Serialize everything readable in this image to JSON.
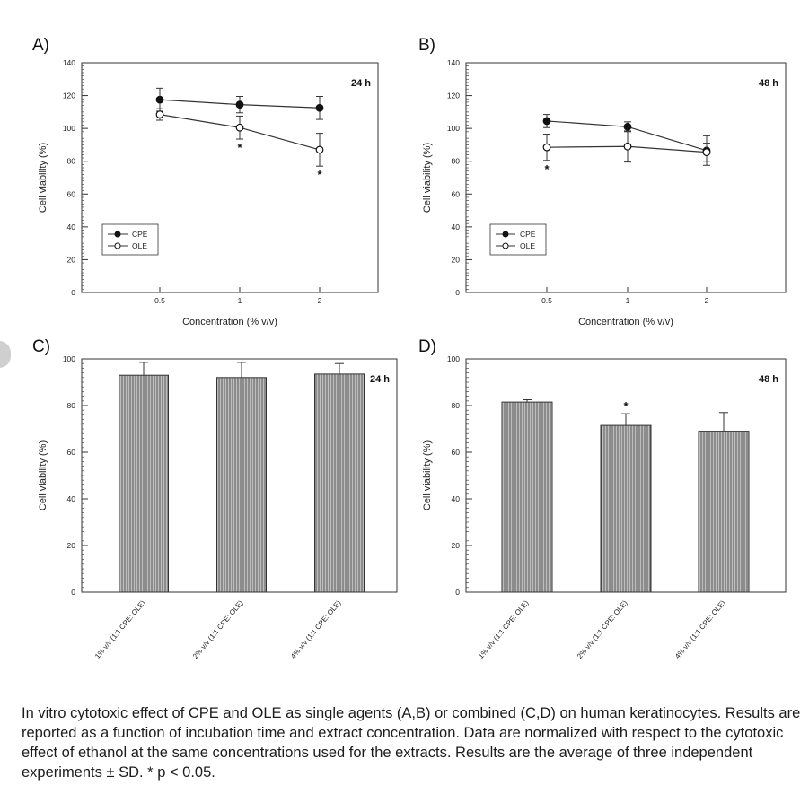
{
  "chart_data": [
    {
      "panel_label": "A)",
      "type": "line",
      "title": "24 h",
      "xlabel": "Concentration (% v/v)",
      "ylabel": "Cell viability (%)",
      "categories": [
        "0.5",
        "1",
        "2"
      ],
      "yticks": [
        "0",
        "20",
        "40",
        "60",
        "80",
        "100",
        "120",
        "140"
      ],
      "ylim": [
        0,
        140
      ],
      "legend": "bottom-left",
      "series": [
        {
          "name": "CPE",
          "marker": "filled",
          "values": [
            117.5,
            114.5,
            112.5
          ],
          "errors": [
            7,
            5,
            7
          ]
        },
        {
          "name": "OLE",
          "marker": "open",
          "values": [
            108.5,
            100.5,
            87
          ],
          "errors": [
            3.5,
            7,
            10
          ]
        }
      ],
      "significance": [
        {
          "series": "OLE",
          "index": 1,
          "label": "*"
        },
        {
          "series": "OLE",
          "index": 2,
          "label": "*"
        }
      ]
    },
    {
      "panel_label": "B)",
      "type": "line",
      "title": "48 h",
      "xlabel": "Concentration (% v/v)",
      "ylabel": "Cell viability (%)",
      "categories": [
        "0.5",
        "1",
        "2"
      ],
      "yticks": [
        "0",
        "20",
        "40",
        "60",
        "80",
        "100",
        "120",
        "140"
      ],
      "ylim": [
        0,
        140
      ],
      "legend": "bottom-left",
      "series": [
        {
          "name": "CPE",
          "marker": "filled",
          "values": [
            104.5,
            101,
            86.5
          ],
          "errors": [
            4,
            3,
            9
          ]
        },
        {
          "name": "OLE",
          "marker": "open",
          "values": [
            88.5,
            89,
            85.5
          ],
          "errors": [
            8,
            9.5,
            5.5
          ]
        }
      ],
      "significance": [
        {
          "series": "OLE",
          "index": 0,
          "label": "*"
        }
      ]
    },
    {
      "panel_label": "C)",
      "type": "bar",
      "title": "24 h",
      "ylabel": "Cell viability (%)",
      "categories": [
        "1% v/v (1:1 CPE: OLE)",
        "2% v/v (1:1 CPE: OLE)",
        "4% v/v (1:1 CPE: OLE)"
      ],
      "yticks": [
        "0",
        "20",
        "40",
        "60",
        "80",
        "100"
      ],
      "ylim": [
        0,
        100
      ],
      "values": [
        93,
        92,
        93.5
      ],
      "errors": [
        5.5,
        6.5,
        4.5
      ],
      "significance": []
    },
    {
      "panel_label": "D)",
      "type": "bar",
      "title": "48 h",
      "ylabel": "Cell viability (%)",
      "categories": [
        "1% v/v (1:1 CPE: OLE)",
        "2% v/v (1:1 CPE: OLE)",
        "4% v/v (1:1 CPE: OLE)"
      ],
      "yticks": [
        "0",
        "20",
        "40",
        "60",
        "80",
        "100"
      ],
      "ylim": [
        0,
        100
      ],
      "values": [
        81.5,
        71.5,
        69
      ],
      "errors": [
        1,
        5,
        8
      ],
      "significance": [
        {
          "index": 1,
          "label": "*"
        }
      ]
    }
  ],
  "caption": "In vitro cytotoxic effect of CPE and OLE as single agents (A,B) or combined (C,D) on human keratinocytes. Results are reported as a function of incubation time and extract concentration. Data are normalized with respect to the cytotoxic effect of ethanol at the same concentrations used for the extracts. Results are the average of three independent experiments ± SD. * p < 0.05."
}
